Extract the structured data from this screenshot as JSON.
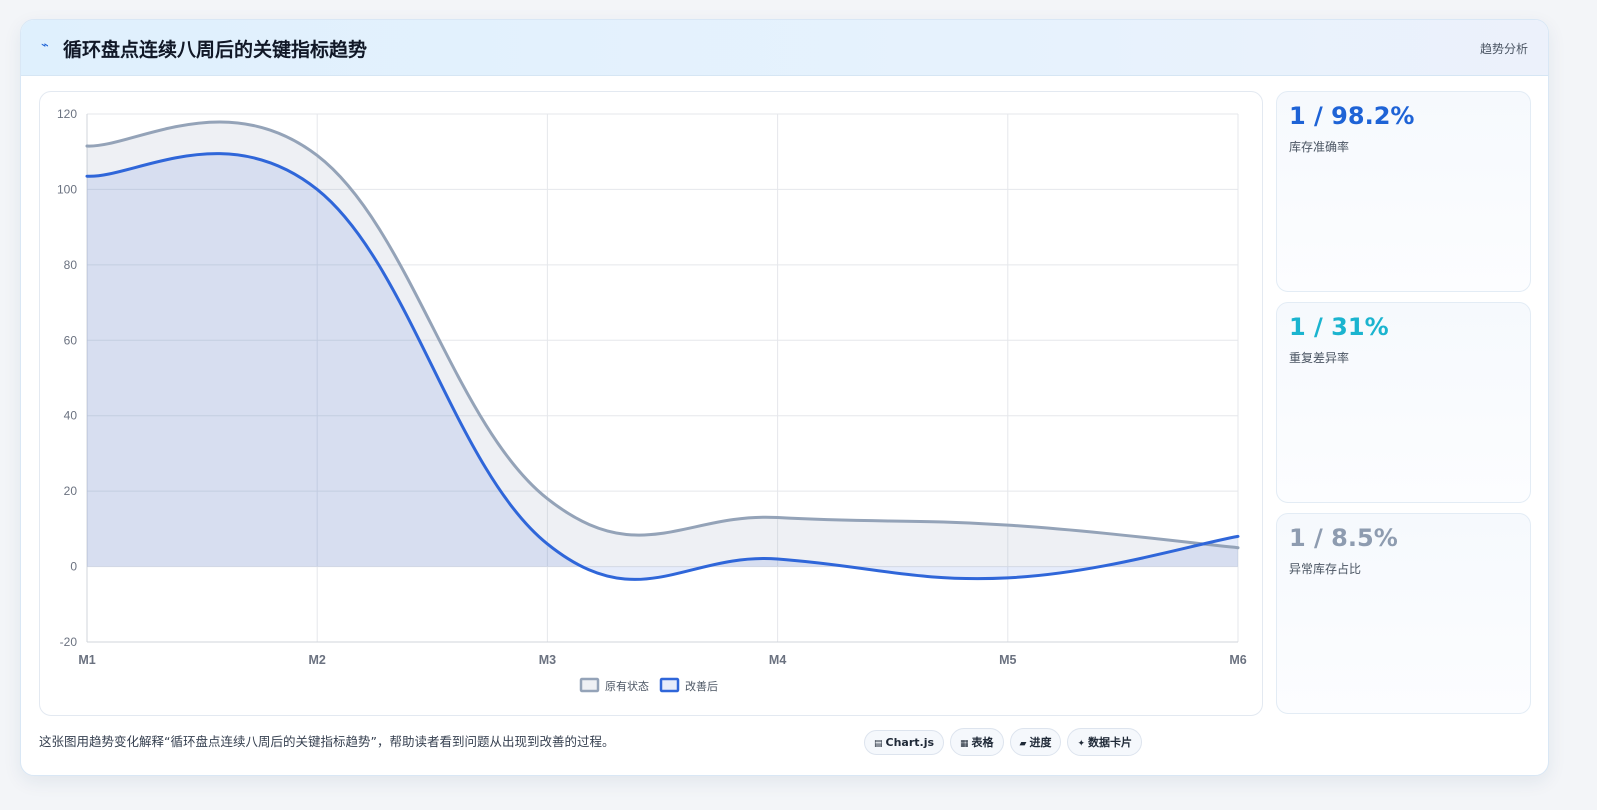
{
  "header": {
    "icon": "trend-line-icon",
    "title": "循环盘点连续八周后的关键指标趋势",
    "tag": "趋势分析"
  },
  "kpis": [
    {
      "value": "1 / 98.2%",
      "label": "库存准确率",
      "color": "#1e63d6"
    },
    {
      "value": "1 / 31%",
      "label": "重复差异率",
      "color": "#1bb4cf"
    },
    {
      "value": "1 / 8.5%",
      "label": "异常库存占比",
      "color": "#8e9cb0"
    }
  ],
  "footer": {
    "text": "这张图用趋势变化解释“循环盘点连续八周后的关键指标趋势”，帮助读者看到问题从出现到改善的过程。",
    "pills": [
      {
        "icon": "chart-icon",
        "glyph": "▤",
        "label": "Chart.js"
      },
      {
        "icon": "table-icon",
        "glyph": "▦",
        "label": "表格"
      },
      {
        "icon": "progress-icon",
        "glyph": "▰",
        "label": "进度"
      },
      {
        "icon": "sparkle-icon",
        "glyph": "✦",
        "label": "数据卡片"
      }
    ]
  },
  "chart_data": {
    "type": "area",
    "categories": [
      "M1",
      "M2",
      "M3",
      "M4",
      "M5",
      "M6"
    ],
    "ylim": [
      -20,
      120
    ],
    "yticks": [
      -20,
      0,
      20,
      40,
      60,
      80,
      100,
      120
    ],
    "grid": true,
    "legend_position": "bottom",
    "series": [
      {
        "name": "原有状态",
        "values": [
          111.5,
          109,
          18,
          13,
          11,
          5
        ],
        "color": "#94a3b8",
        "fill": "rgba(148,163,184,0.16)"
      },
      {
        "name": "改善后",
        "values": [
          103.5,
          100,
          6,
          2,
          -3,
          8
        ],
        "color": "#2f66d9",
        "fill": "rgba(47,102,217,0.12)"
      }
    ]
  }
}
